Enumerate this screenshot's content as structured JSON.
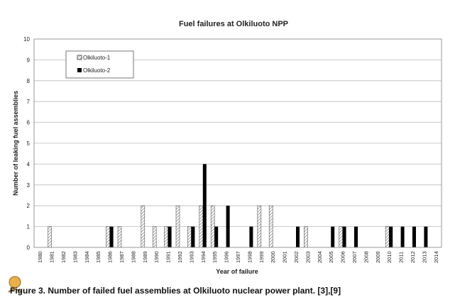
{
  "chart_data": {
    "type": "bar",
    "title": "Fuel failures at Olkiluoto NPP",
    "xlabel": "Year of failure",
    "ylabel": "Number of leaking fuel assemblies",
    "ylim": [
      0,
      10
    ],
    "yticks": [
      0,
      1,
      2,
      3,
      4,
      5,
      6,
      7,
      8,
      9,
      10
    ],
    "grid": true,
    "legend_position": "top-left",
    "categories": [
      "1980",
      "1981",
      "1982",
      "1983",
      "1984",
      "1985",
      "1986",
      "1987",
      "1988",
      "1989",
      "1990",
      "1991",
      "1992",
      "1993",
      "1994",
      "1995",
      "1996",
      "1997",
      "1998",
      "1999",
      "2000",
      "2001",
      "2002",
      "2003",
      "2004",
      "2005",
      "2006",
      "2007",
      "2008",
      "2009",
      "2010",
      "2011",
      "2012",
      "2013",
      "2014"
    ],
    "series": [
      {
        "name": "Olkiluoto-1",
        "color": "hatched-light",
        "values": [
          0,
          1,
          0,
          0,
          0,
          0,
          1,
          1,
          0,
          2,
          1,
          1,
          2,
          1,
          2,
          2,
          0,
          0,
          0,
          2,
          2,
          0,
          0,
          1,
          0,
          0,
          1,
          0,
          0,
          0,
          1,
          0,
          0,
          0,
          0
        ]
      },
      {
        "name": "Olkiluoto-2",
        "color": "#000000",
        "values": [
          0,
          0,
          0,
          0,
          0,
          0,
          1,
          0,
          0,
          0,
          0,
          1,
          0,
          1,
          4,
          1,
          2,
          0,
          1,
          0,
          0,
          0,
          1,
          0,
          0,
          1,
          1,
          1,
          0,
          0,
          1,
          1,
          1,
          1,
          0
        ]
      }
    ]
  },
  "caption": "Figure 3.  Number of failed fuel assemblies at Olkiluoto nuclear power plant. [3],[9]"
}
